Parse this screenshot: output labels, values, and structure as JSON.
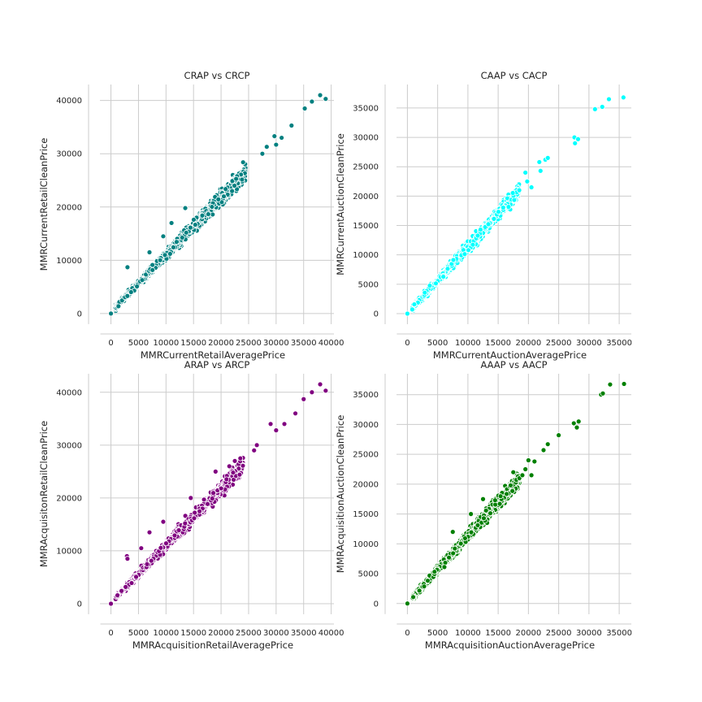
{
  "chart_data": [
    {
      "type": "scatter",
      "title": "CRAP vs CRCP",
      "xlabel": "MMRCurrentRetailAveragePrice",
      "ylabel": "MMRCurrentRetailCleanPrice",
      "color": "#008080",
      "grid": true,
      "xlim": [
        -2000,
        40500
      ],
      "ylim": [
        -2000,
        43000
      ],
      "xticks": [
        0,
        5000,
        10000,
        15000,
        20000,
        25000,
        30000,
        35000,
        40000
      ],
      "yticks": [
        0,
        10000,
        20000,
        30000,
        40000
      ],
      "trend": {
        "slope": 1.07,
        "intercept": 200,
        "x_max": 24500
      },
      "outliers": [
        [
          0,
          0
        ],
        [
          3000,
          8700
        ],
        [
          7000,
          11500
        ],
        [
          9500,
          14500
        ],
        [
          11000,
          17000
        ],
        [
          13500,
          19800
        ],
        [
          20500,
          22000
        ],
        [
          22000,
          23000
        ],
        [
          24000,
          28400
        ],
        [
          27500,
          30000
        ],
        [
          28300,
          31300
        ],
        [
          29700,
          33300
        ],
        [
          30000,
          31700
        ],
        [
          31000,
          33000
        ],
        [
          32800,
          35300
        ],
        [
          35200,
          38500
        ],
        [
          36500,
          39800
        ],
        [
          38000,
          41000
        ],
        [
          39000,
          40300
        ]
      ]
    },
    {
      "type": "scatter",
      "title": "CAAP vs CACP",
      "xlabel": "MMRCurrentAuctionAveragePrice",
      "ylabel": "MMRCurrentAuctionCleanPrice",
      "color": "#00ffff",
      "grid": true,
      "xlim": [
        -1800,
        37000
      ],
      "ylim": [
        -1800,
        39000
      ],
      "xticks": [
        0,
        5000,
        10000,
        15000,
        20000,
        25000,
        30000,
        35000
      ],
      "yticks": [
        0,
        5000,
        10000,
        15000,
        20000,
        25000,
        30000,
        35000
      ],
      "trend": {
        "slope": 1.12,
        "intercept": 0,
        "x_max": 18500
      },
      "outliers": [
        [
          0,
          0
        ],
        [
          19500,
          24000
        ],
        [
          19800,
          22500
        ],
        [
          20500,
          21500
        ],
        [
          21800,
          25800
        ],
        [
          22000,
          24300
        ],
        [
          22800,
          26200
        ],
        [
          23200,
          26500
        ],
        [
          27600,
          30000
        ],
        [
          27700,
          29000
        ],
        [
          28200,
          29700
        ],
        [
          31000,
          34800
        ],
        [
          32200,
          35200
        ],
        [
          33300,
          36500
        ],
        [
          35700,
          36800
        ]
      ]
    },
    {
      "type": "scatter",
      "title": "ARAP vs ARCP",
      "xlabel": "MMRAcquisitionRetailAveragePrice",
      "ylabel": "MMRAcquisitonRetailCleanPrice",
      "color": "#800080",
      "grid": true,
      "xlim": [
        -2000,
        40500
      ],
      "ylim": [
        -2000,
        43500
      ],
      "xticks": [
        0,
        5000,
        10000,
        15000,
        20000,
        25000,
        30000,
        35000,
        40000
      ],
      "yticks": [
        0,
        10000,
        20000,
        30000,
        40000
      ],
      "trend": {
        "slope": 1.07,
        "intercept": 200,
        "x_max": 24000
      },
      "outliers": [
        [
          0,
          0
        ],
        [
          2900,
          9000
        ],
        [
          3000,
          8500
        ],
        [
          5500,
          10500
        ],
        [
          7000,
          13500
        ],
        [
          9500,
          15500
        ],
        [
          14500,
          20000
        ],
        [
          19000,
          25000
        ],
        [
          21500,
          26000
        ],
        [
          22500,
          27000
        ],
        [
          23500,
          27500
        ],
        [
          26000,
          29000
        ],
        [
          26500,
          30000
        ],
        [
          29000,
          34000
        ],
        [
          30000,
          32800
        ],
        [
          31500,
          34000
        ],
        [
          33500,
          36000
        ],
        [
          35000,
          38700
        ],
        [
          36500,
          40000
        ],
        [
          38000,
          41500
        ],
        [
          39000,
          40300
        ]
      ]
    },
    {
      "type": "scatter",
      "title": "AAAP vs AACP",
      "xlabel": "MMRAcquisitionAuctionAveragePrice",
      "ylabel": "MMRAcquisitionAuctionCleanPrice",
      "color": "#008000",
      "grid": true,
      "xlim": [
        -1800,
        37000
      ],
      "ylim": [
        -1800,
        38500
      ],
      "xticks": [
        0,
        5000,
        10000,
        15000,
        20000,
        25000,
        30000,
        35000
      ],
      "yticks": [
        0,
        5000,
        10000,
        15000,
        20000,
        25000,
        30000,
        35000
      ],
      "trend": {
        "slope": 1.12,
        "intercept": 0,
        "x_max": 18500
      },
      "outliers": [
        [
          0,
          0
        ],
        [
          7500,
          12000
        ],
        [
          10500,
          15000
        ],
        [
          12500,
          17500
        ],
        [
          17500,
          22000
        ],
        [
          18500,
          21000
        ],
        [
          19000,
          21500
        ],
        [
          19500,
          22500
        ],
        [
          20000,
          24000
        ],
        [
          20500,
          21500
        ],
        [
          21000,
          23800
        ],
        [
          22500,
          25700
        ],
        [
          23200,
          26700
        ],
        [
          25000,
          28200
        ],
        [
          27500,
          30200
        ],
        [
          28000,
          29500
        ],
        [
          28300,
          30500
        ],
        [
          32000,
          35000
        ],
        [
          32300,
          35200
        ],
        [
          33500,
          36700
        ],
        [
          35800,
          36800
        ]
      ]
    }
  ]
}
